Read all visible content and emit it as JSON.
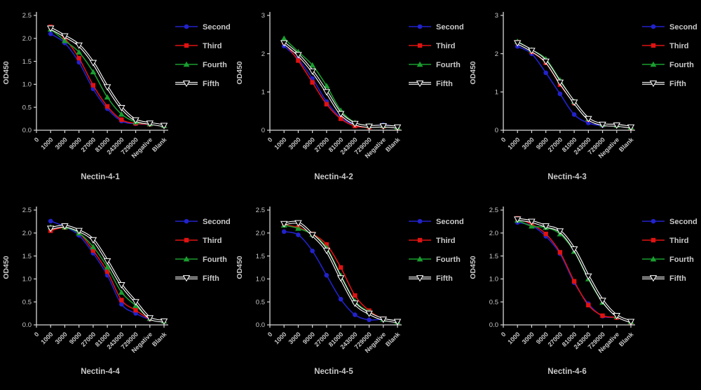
{
  "figure": {
    "background": "#000000",
    "text_color": "#c9c9c9",
    "axis_color": "#d6d6d6"
  },
  "legend": {
    "labels": [
      "Second",
      "Third",
      "Fourth",
      "Fifth"
    ],
    "position": "right"
  },
  "series_colors": {
    "Second": "#2222cc",
    "Third": "#e01212",
    "Fourth": "#1a9e2f",
    "Fifth": "#000000",
    "Fifth_halo": "#ffffff"
  },
  "chart_data": [
    {
      "type": "line",
      "title": "Nectin-4-1",
      "ylabel": "OD450",
      "ylim": [
        0,
        2.5
      ],
      "yticks": [
        "0.0",
        "0.5",
        "1.0",
        "1.5",
        "2.0",
        "2.5"
      ],
      "x_categories": [
        "0",
        "1000",
        "3000",
        "9000",
        "27000",
        "81000",
        "243000",
        "729000",
        "Negative",
        "Blank"
      ],
      "grid": false,
      "legend_position": "right",
      "series": [
        {
          "name": "Second",
          "marker": "circle",
          "color": "#2222cc",
          "values": [
            2.1,
            1.9,
            1.48,
            0.9,
            0.47,
            0.2,
            0.14,
            0.13,
            0.1
          ]
        },
        {
          "name": "Third",
          "marker": "square",
          "color": "#e01212",
          "values": [
            2.25,
            2.0,
            1.57,
            0.98,
            0.52,
            0.23,
            0.15,
            0.13,
            0.1
          ]
        },
        {
          "name": "Fourth",
          "marker": "triangle-up",
          "color": "#1a9e2f",
          "values": [
            2.2,
            1.95,
            1.7,
            1.27,
            0.72,
            0.35,
            0.18,
            0.14,
            0.1
          ]
        },
        {
          "name": "Fifth",
          "marker": "triangle-down",
          "color": "#000000",
          "halo": "#ffffff",
          "values": [
            2.22,
            2.05,
            1.85,
            1.47,
            0.94,
            0.49,
            0.22,
            0.15,
            0.1
          ]
        }
      ]
    },
    {
      "type": "line",
      "title": "Nectin-4-2",
      "ylabel": "OD450",
      "ylim": [
        0,
        3
      ],
      "yticks": [
        "0",
        "1",
        "2",
        "3"
      ],
      "x_categories": [
        "0",
        "1000",
        "3000",
        "9000",
        "27000",
        "81000",
        "243000",
        "729000",
        "Negative",
        "Blank"
      ],
      "grid": false,
      "legend_position": "right",
      "series": [
        {
          "name": "Second",
          "marker": "circle",
          "color": "#2222cc",
          "values": [
            2.2,
            1.86,
            1.35,
            0.75,
            0.33,
            0.14,
            0.1,
            0.14,
            0.08
          ]
        },
        {
          "name": "Third",
          "marker": "square",
          "color": "#e01212",
          "values": [
            2.3,
            1.82,
            1.25,
            0.68,
            0.3,
            0.11,
            0.08,
            0.1,
            0.07
          ]
        },
        {
          "name": "Fourth",
          "marker": "triangle-up",
          "color": "#1a9e2f",
          "values": [
            2.4,
            2.05,
            1.7,
            1.16,
            0.52,
            0.2,
            0.12,
            0.12,
            0.08
          ]
        },
        {
          "name": "Fifth",
          "marker": "triangle-down",
          "color": "#000000",
          "halo": "#ffffff",
          "values": [
            2.28,
            1.97,
            1.54,
            1.0,
            0.43,
            0.17,
            0.1,
            0.11,
            0.08
          ]
        }
      ]
    },
    {
      "type": "line",
      "title": "Nectin-4-3",
      "ylabel": "OD450",
      "ylim": [
        0,
        3
      ],
      "yticks": [
        "0",
        "1",
        "2",
        "3"
      ],
      "x_categories": [
        "0",
        "1000",
        "3000",
        "9000",
        "27000",
        "81000",
        "243000",
        "729000",
        "Negative",
        "Blank"
      ],
      "grid": false,
      "legend_position": "right",
      "series": [
        {
          "name": "Second",
          "marker": "circle",
          "color": "#2222cc",
          "values": [
            2.19,
            2.0,
            1.5,
            0.95,
            0.41,
            0.19,
            0.12,
            0.13,
            0.07
          ]
        },
        {
          "name": "Third",
          "marker": "square",
          "color": "#e01212",
          "values": [
            2.3,
            2.05,
            1.76,
            1.19,
            0.71,
            0.28,
            0.14,
            0.13,
            0.07
          ]
        },
        {
          "name": "Fourth",
          "marker": "triangle-up",
          "color": "#1a9e2f",
          "values": [
            2.32,
            2.1,
            1.86,
            1.31,
            0.75,
            0.3,
            0.15,
            0.13,
            0.08
          ]
        },
        {
          "name": "Fifth",
          "marker": "triangle-down",
          "color": "#000000",
          "halo": "#ffffff",
          "values": [
            2.28,
            2.08,
            1.8,
            1.25,
            0.73,
            0.3,
            0.15,
            0.13,
            0.08
          ]
        }
      ]
    },
    {
      "type": "line",
      "title": "Nectin-4-4",
      "ylabel": "OD450",
      "ylim": [
        0,
        2.5
      ],
      "yticks": [
        "0.0",
        "0.5",
        "1.0",
        "1.5",
        "2.0",
        "2.5"
      ],
      "x_categories": [
        "0",
        "1000",
        "3000",
        "9000",
        "27000",
        "81000",
        "243000",
        "729000",
        "Negative",
        "Blank"
      ],
      "grid": false,
      "legend_position": "right",
      "series": [
        {
          "name": "Second",
          "marker": "circle",
          "color": "#2222cc",
          "values": [
            2.26,
            2.14,
            1.95,
            1.56,
            1.08,
            0.45,
            0.25,
            0.12,
            0.08
          ]
        },
        {
          "name": "Third",
          "marker": "square",
          "color": "#e01212",
          "values": [
            2.05,
            2.12,
            2.0,
            1.62,
            1.16,
            0.54,
            0.32,
            0.13,
            0.08
          ]
        },
        {
          "name": "Fourth",
          "marker": "triangle-up",
          "color": "#1a9e2f",
          "values": [
            2.13,
            2.13,
            2.0,
            1.7,
            1.26,
            0.71,
            0.42,
            0.14,
            0.08
          ]
        },
        {
          "name": "Fifth",
          "marker": "triangle-down",
          "color": "#000000",
          "halo": "#ffffff",
          "values": [
            2.1,
            2.15,
            2.05,
            1.85,
            1.39,
            0.87,
            0.5,
            0.15,
            0.08
          ]
        }
      ]
    },
    {
      "type": "line",
      "title": "Nectin-4-5",
      "ylabel": "OD450",
      "ylim": [
        0,
        2.5
      ],
      "yticks": [
        "0.0",
        "0.5",
        "1.0",
        "1.5",
        "2.0",
        "2.5"
      ],
      "x_categories": [
        "0",
        "1000",
        "3000",
        "9000",
        "27000",
        "81000",
        "243000",
        "729000",
        "Negative",
        "Blank"
      ],
      "grid": false,
      "legend_position": "right",
      "series": [
        {
          "name": "Second",
          "marker": "circle",
          "color": "#2222cc",
          "values": [
            2.03,
            1.96,
            1.61,
            1.08,
            0.56,
            0.22,
            0.11,
            0.12,
            0.07
          ]
        },
        {
          "name": "Third",
          "marker": "square",
          "color": "#e01212",
          "values": [
            2.18,
            2.12,
            1.98,
            1.75,
            1.25,
            0.64,
            0.31,
            0.13,
            0.07
          ]
        },
        {
          "name": "Fourth",
          "marker": "triangle-up",
          "color": "#1a9e2f",
          "values": [
            2.17,
            2.1,
            1.97,
            1.68,
            1.08,
            0.52,
            0.28,
            0.12,
            0.07
          ]
        },
        {
          "name": "Fifth",
          "marker": "triangle-down",
          "color": "#000000",
          "halo": "#ffffff",
          "values": [
            2.2,
            2.22,
            1.96,
            1.62,
            1.02,
            0.47,
            0.25,
            0.12,
            0.07
          ]
        }
      ]
    },
    {
      "type": "line",
      "title": "Nectin-4-6",
      "ylabel": "OD450",
      "ylim": [
        0,
        2.5
      ],
      "yticks": [
        "0.0",
        "0.5",
        "1.0",
        "1.5",
        "2.0",
        "2.5"
      ],
      "x_categories": [
        "0",
        "1000",
        "3000",
        "9000",
        "27000",
        "81000",
        "243000",
        "729000",
        "Negative",
        "Blank"
      ],
      "grid": false,
      "legend_position": "right",
      "series": [
        {
          "name": "Second",
          "marker": "circle",
          "color": "#2222cc",
          "values": [
            2.23,
            2.16,
            1.93,
            1.55,
            0.92,
            0.46,
            0.19,
            0.16,
            0.06
          ]
        },
        {
          "name": "Third",
          "marker": "square",
          "color": "#e01212",
          "values": [
            2.32,
            2.19,
            1.98,
            1.58,
            0.95,
            0.43,
            0.2,
            0.16,
            0.06
          ]
        },
        {
          "name": "Fourth",
          "marker": "triangle-up",
          "color": "#1a9e2f",
          "values": [
            2.28,
            2.15,
            2.12,
            1.98,
            1.6,
            1.0,
            0.49,
            0.19,
            0.07
          ]
        },
        {
          "name": "Fifth",
          "marker": "triangle-down",
          "color": "#000000",
          "halo": "#ffffff",
          "values": [
            2.3,
            2.25,
            2.15,
            2.04,
            1.65,
            1.06,
            0.53,
            0.2,
            0.07
          ]
        }
      ]
    }
  ]
}
